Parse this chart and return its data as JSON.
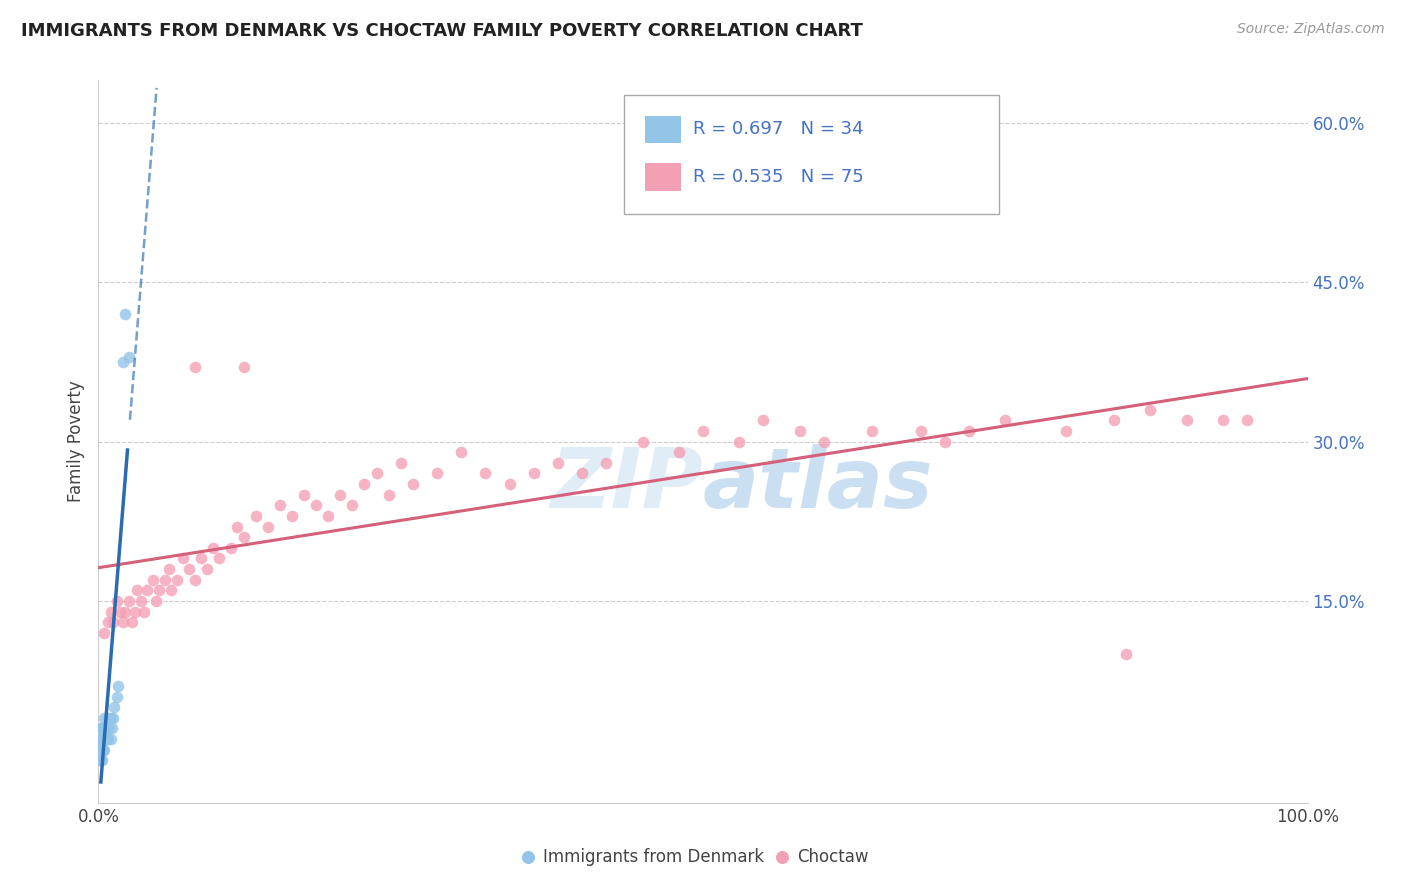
{
  "title": "IMMIGRANTS FROM DENMARK VS CHOCTAW FAMILY POVERTY CORRELATION CHART",
  "source": "Source: ZipAtlas.com",
  "ylabel": "Family Poverty",
  "xlim": [
    0,
    1.0
  ],
  "ylim": [
    -0.04,
    0.64
  ],
  "yticks_right": [
    0.15,
    0.3,
    0.45,
    0.6
  ],
  "ytick_right_labels": [
    "15.0%",
    "30.0%",
    "45.0%",
    "60.0%"
  ],
  "color_blue": "#92C5E8",
  "color_pink": "#F4A0B4",
  "color_blue_line": "#2B6CB0",
  "color_pink_line": "#D4607A",
  "denmark_x": [
    0.001,
    0.001,
    0.001,
    0.002,
    0.002,
    0.002,
    0.002,
    0.003,
    0.003,
    0.003,
    0.003,
    0.004,
    0.004,
    0.004,
    0.005,
    0.005,
    0.005,
    0.006,
    0.006,
    0.007,
    0.007,
    0.008,
    0.008,
    0.009,
    0.01,
    0.01,
    0.011,
    0.012,
    0.013,
    0.015,
    0.016,
    0.02,
    0.022,
    0.025
  ],
  "denmark_y": [
    0.0,
    0.01,
    0.02,
    0.0,
    0.01,
    0.02,
    0.03,
    0.0,
    0.01,
    0.02,
    0.03,
    0.01,
    0.02,
    0.03,
    0.01,
    0.02,
    0.04,
    0.02,
    0.03,
    0.02,
    0.03,
    0.02,
    0.04,
    0.03,
    0.02,
    0.04,
    0.03,
    0.04,
    0.05,
    0.06,
    0.07,
    0.375,
    0.42,
    0.38
  ],
  "choctaw_x": [
    0.005,
    0.008,
    0.01,
    0.012,
    0.015,
    0.018,
    0.02,
    0.022,
    0.025,
    0.028,
    0.03,
    0.032,
    0.035,
    0.038,
    0.04,
    0.045,
    0.048,
    0.05,
    0.055,
    0.058,
    0.06,
    0.065,
    0.07,
    0.075,
    0.08,
    0.085,
    0.09,
    0.095,
    0.1,
    0.11,
    0.115,
    0.12,
    0.13,
    0.14,
    0.15,
    0.16,
    0.17,
    0.18,
    0.19,
    0.2,
    0.21,
    0.22,
    0.23,
    0.24,
    0.25,
    0.26,
    0.28,
    0.3,
    0.32,
    0.34,
    0.36,
    0.38,
    0.4,
    0.42,
    0.45,
    0.48,
    0.5,
    0.53,
    0.55,
    0.58,
    0.6,
    0.64,
    0.68,
    0.7,
    0.72,
    0.75,
    0.8,
    0.84,
    0.87,
    0.9,
    0.93,
    0.95,
    0.08,
    0.12,
    0.85
  ],
  "choctaw_y": [
    0.12,
    0.13,
    0.14,
    0.13,
    0.15,
    0.14,
    0.13,
    0.14,
    0.15,
    0.13,
    0.14,
    0.16,
    0.15,
    0.14,
    0.16,
    0.17,
    0.15,
    0.16,
    0.17,
    0.18,
    0.16,
    0.17,
    0.19,
    0.18,
    0.17,
    0.19,
    0.18,
    0.2,
    0.19,
    0.2,
    0.22,
    0.21,
    0.23,
    0.22,
    0.24,
    0.23,
    0.25,
    0.24,
    0.23,
    0.25,
    0.24,
    0.26,
    0.27,
    0.25,
    0.28,
    0.26,
    0.27,
    0.29,
    0.27,
    0.26,
    0.27,
    0.28,
    0.27,
    0.28,
    0.3,
    0.29,
    0.31,
    0.3,
    0.32,
    0.31,
    0.3,
    0.31,
    0.31,
    0.3,
    0.31,
    0.32,
    0.31,
    0.32,
    0.33,
    0.32,
    0.32,
    0.32,
    0.37,
    0.37,
    0.1
  ]
}
